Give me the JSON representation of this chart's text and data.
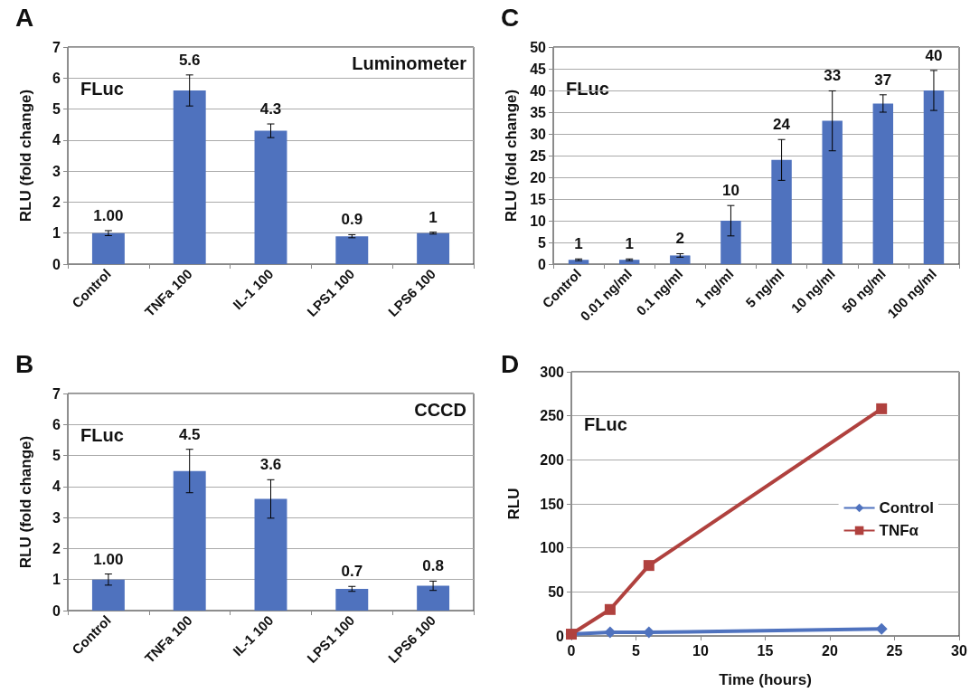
{
  "chart_data": [
    {
      "type": "bar",
      "title": "A",
      "ylabel": "RLU (fold change)",
      "categories": [
        "Control",
        "TNFa 100",
        "IL-1 100",
        "LPS1 100",
        "LPS6 100"
      ],
      "values": [
        1,
        5.6,
        4.3,
        0.9,
        1
      ],
      "value_labels": [
        "1.00",
        "5.6",
        "4.3",
        "0.9",
        "1"
      ],
      "errors": [
        0.08,
        0.5,
        0.22,
        0.05,
        0.03
      ],
      "color": "#4f72be",
      "ylim": [
        0,
        7
      ],
      "yticks": [
        0,
        1,
        2,
        3,
        4,
        5,
        6,
        7
      ],
      "grid": "y",
      "annotations": [
        "FLuc",
        "Luminometer"
      ]
    },
    {
      "type": "bar",
      "title": "C",
      "ylabel": "RLU (fold change)",
      "categories": [
        "Control",
        "0.01 ng/ml",
        "0.1 ng/ml",
        "1 ng/ml",
        "5 ng/ml",
        "10 ng/ml",
        "50 ng/ml",
        "100 ng/ml"
      ],
      "values": [
        1,
        1,
        2,
        10,
        24,
        33,
        37,
        40
      ],
      "value_labels": [
        "1",
        "1",
        "2",
        "10",
        "24",
        "33",
        "37",
        "40"
      ],
      "errors": [
        0.2,
        0.2,
        0.4,
        3.5,
        4.7,
        6.9,
        2,
        4.6
      ],
      "color": "#4f72be",
      "ylim": [
        0,
        50
      ],
      "yticks": [
        0,
        5,
        10,
        15,
        20,
        25,
        30,
        35,
        40,
        45,
        50
      ],
      "grid": "y",
      "annotations": [
        "FLuc"
      ]
    },
    {
      "type": "bar",
      "title": "B",
      "ylabel": "RLU (fold change)",
      "categories": [
        "Control",
        "TNFa 100",
        "IL-1 100",
        "LPS1 100",
        "LPS6 100"
      ],
      "values": [
        1,
        4.5,
        3.6,
        0.7,
        0.8
      ],
      "value_labels": [
        "1.00",
        "4.5",
        "3.6",
        "0.7",
        "0.8"
      ],
      "errors": [
        0.18,
        0.7,
        0.62,
        0.08,
        0.15
      ],
      "color": "#4f72be",
      "ylim": [
        0,
        7
      ],
      "yticks": [
        0,
        1,
        2,
        3,
        4,
        5,
        6,
        7
      ],
      "grid": "y",
      "annotations": [
        "FLuc",
        "CCCD"
      ]
    },
    {
      "type": "line",
      "title": "D",
      "xlabel": "Time (hours)",
      "ylabel": "RLU",
      "x": [
        0,
        3,
        6,
        24
      ],
      "series": [
        {
          "name": "Control",
          "color": "#4f72be",
          "marker": "diamond",
          "values": [
            2,
            4,
            4,
            8
          ]
        },
        {
          "name": "TNFα",
          "color": "#b0413e",
          "marker": "square",
          "values": [
            2,
            30,
            80,
            258
          ]
        }
      ],
      "xlim": [
        0,
        30
      ],
      "xticks": [
        0,
        5,
        10,
        15,
        20,
        25,
        30
      ],
      "ylim": [
        0,
        300
      ],
      "yticks": [
        0,
        50,
        100,
        150,
        200,
        250,
        300
      ],
      "grid": "y",
      "legend": "right",
      "line_style": "solid",
      "annotations": [
        "FLuc"
      ]
    }
  ]
}
